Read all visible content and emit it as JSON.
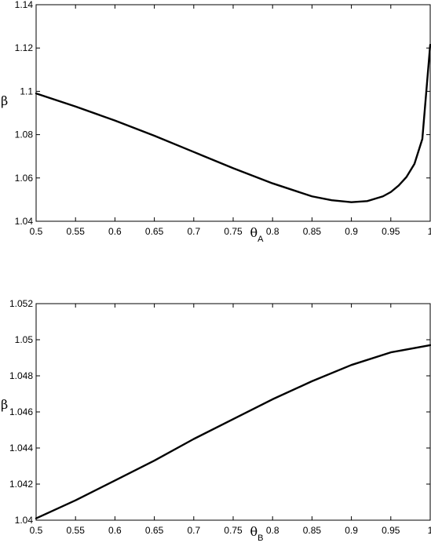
{
  "chart_data": [
    {
      "type": "line",
      "title": "",
      "xlabel": "θ",
      "xlabel_subscript": "A",
      "ylabel": "β",
      "xlim": [
        0.5,
        1
      ],
      "ylim": [
        1.04,
        1.14
      ],
      "xticks": [
        "0.5",
        "0.55",
        "0.6",
        "0.65",
        "0.7",
        "0.75",
        "0.8",
        "0.85",
        "0.9",
        "0.95",
        "1"
      ],
      "yticks": [
        "1.04",
        "1.06",
        "1.08",
        "1.1",
        "1.12",
        "1.14"
      ],
      "grid": false,
      "series": [
        {
          "x": [
            0.5,
            0.55,
            0.6,
            0.65,
            0.7,
            0.75,
            0.8,
            0.85,
            0.875,
            0.9,
            0.92,
            0.94,
            0.95,
            0.96,
            0.97,
            0.98,
            0.99,
            1.0
          ],
          "y": [
            1.099,
            1.093,
            1.0865,
            1.0795,
            1.072,
            1.0645,
            1.0575,
            1.0515,
            1.0497,
            1.0488,
            1.0493,
            1.0515,
            1.0535,
            1.0565,
            1.0605,
            1.0665,
            1.078,
            1.1215
          ]
        }
      ]
    },
    {
      "type": "line",
      "title": "",
      "xlabel": "θ",
      "xlabel_subscript": "B",
      "ylabel": "β",
      "xlim": [
        0.5,
        1
      ],
      "ylim": [
        1.04,
        1.052
      ],
      "xticks": [
        "0.5",
        "0.55",
        "0.6",
        "0.65",
        "0.7",
        "0.75",
        "0.8",
        "0.85",
        "0.9",
        "0.95",
        "1"
      ],
      "yticks": [
        "1.04",
        "1.042",
        "1.044",
        "1.046",
        "1.048",
        "1.05",
        "1.052"
      ],
      "grid": false,
      "series": [
        {
          "x": [
            0.5,
            0.55,
            0.6,
            0.65,
            0.7,
            0.75,
            0.8,
            0.85,
            0.9,
            0.95,
            1.0
          ],
          "y": [
            1.0401,
            1.0411,
            1.0422,
            1.0433,
            1.0445,
            1.0456,
            1.0467,
            1.0477,
            1.0486,
            1.0493,
            1.0497
          ]
        }
      ]
    }
  ]
}
